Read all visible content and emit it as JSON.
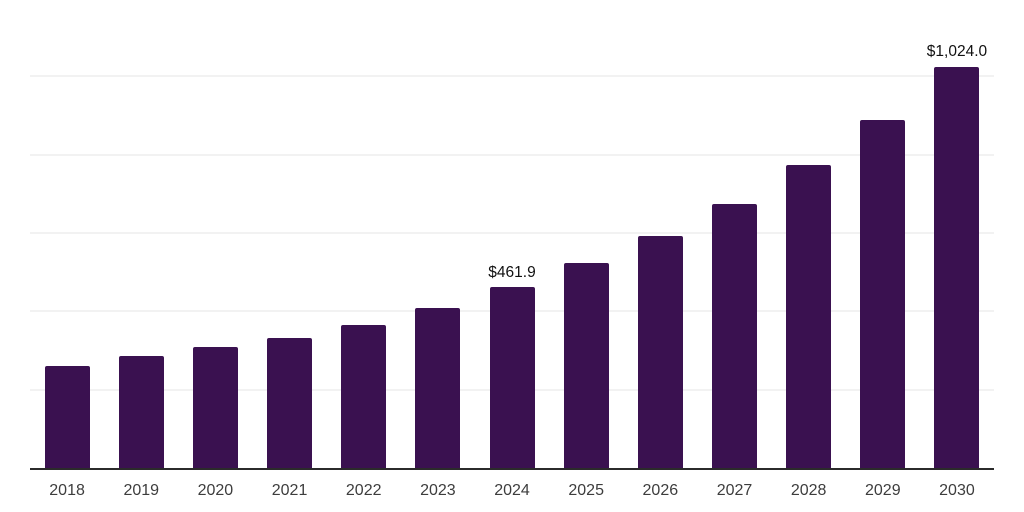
{
  "chart_data": {
    "type": "bar",
    "title": "",
    "xlabel": "",
    "ylabel": "",
    "categories": [
      "2018",
      "2019",
      "2020",
      "2021",
      "2022",
      "2023",
      "2024",
      "2025",
      "2026",
      "2027",
      "2028",
      "2029",
      "2030"
    ],
    "values": [
      260.6,
      286.3,
      308.6,
      332.3,
      366.4,
      409.0,
      461.9,
      522.3,
      592.4,
      674.9,
      772.9,
      887.9,
      1024.0
    ],
    "value_labels": {
      "2024": "$461.9",
      "2030": "$1,024.0"
    },
    "ylim": [
      0,
      1200
    ],
    "gridline_values": [
      200,
      400,
      600,
      800,
      1000,
      1200
    ],
    "grid": "on",
    "legend": "none",
    "y_axis_tick_labels_visible": false,
    "colors": {
      "bar": "#3A1150",
      "gridline": "#F2F2F2",
      "axis_line": "#2B2B2B",
      "tick_label": "#3D3D3D",
      "value_label": "#111111",
      "background": "#FFFFFF"
    }
  }
}
